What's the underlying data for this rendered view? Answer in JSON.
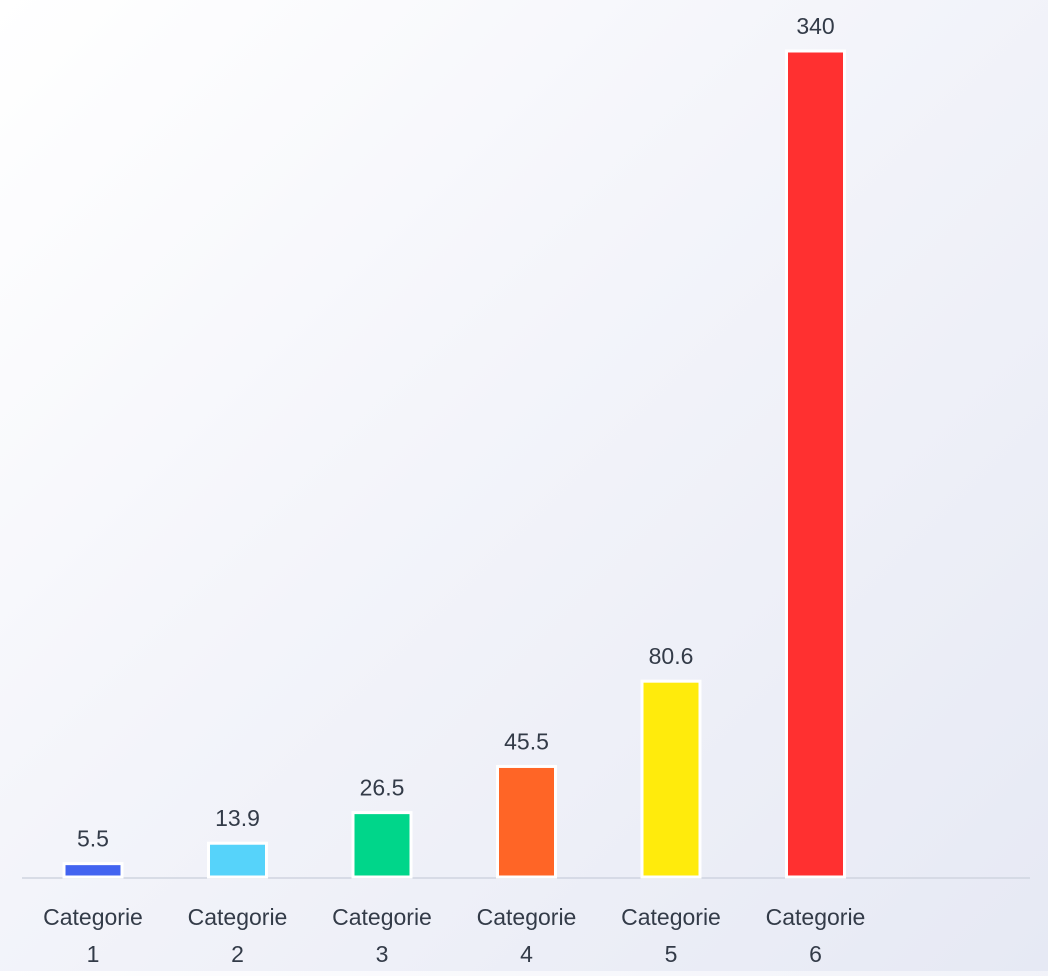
{
  "chart_data": {
    "type": "bar",
    "categories": [
      "Categorie 1",
      "Categorie 2",
      "Categorie 3",
      "Categorie 4",
      "Categorie 5",
      "Categorie 6"
    ],
    "category_lines": [
      [
        "Categorie",
        "1"
      ],
      [
        "Categorie",
        "2"
      ],
      [
        "Categorie",
        "3"
      ],
      [
        "Categorie",
        "4"
      ],
      [
        "Categorie",
        "5"
      ],
      [
        "Categorie",
        "6"
      ]
    ],
    "values": [
      5.5,
      13.9,
      26.5,
      45.5,
      80.6,
      340
    ],
    "value_labels": [
      "5.5",
      "13.9",
      "26.5",
      "45.5",
      "80.6",
      "340"
    ],
    "bar_colors": [
      "#4364f0",
      "#56d3fa",
      "#00d68a",
      "#ff6526",
      "#ffeb0c",
      "#ff3030"
    ],
    "title": "",
    "xlabel": "",
    "ylabel": "",
    "ylim": [
      0,
      340
    ],
    "grid": false,
    "legend": "none"
  }
}
